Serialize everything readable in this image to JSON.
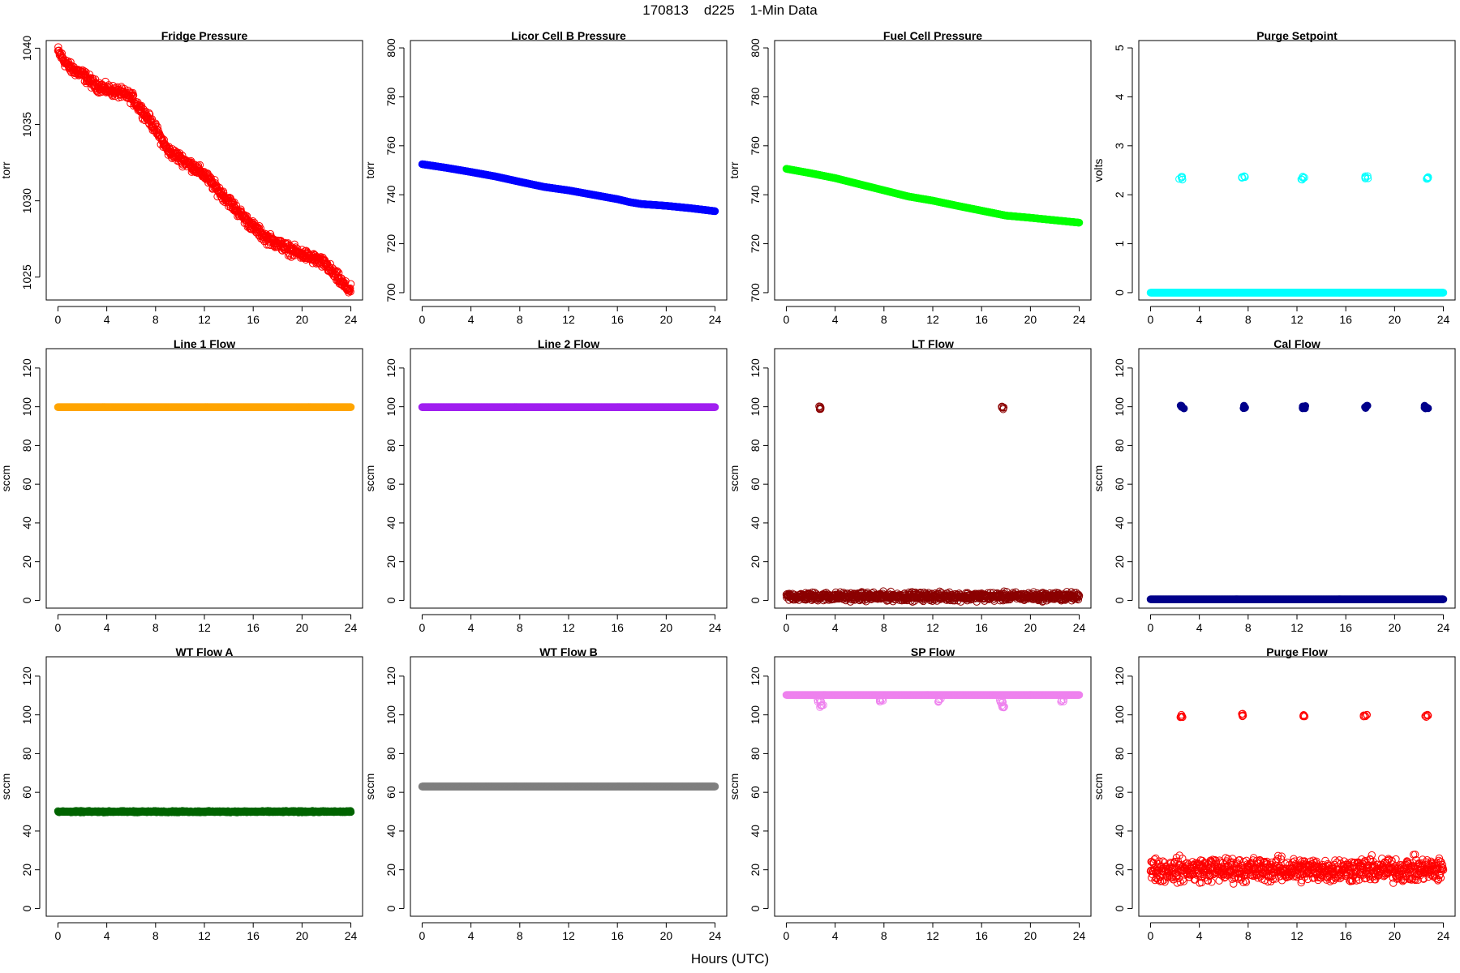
{
  "page": {
    "title": "170813    d225    1-Min Data",
    "xlabel": "Hours (UTC)"
  },
  "chart_data": [
    {
      "type": "scatter",
      "title": "Fridge Pressure",
      "ylabel": "torr",
      "color": "#ff0000",
      "xlim": [
        0,
        24
      ],
      "ylim": [
        1023.5,
        1040.5
      ],
      "xticks": [
        0,
        4,
        8,
        12,
        16,
        20,
        24
      ],
      "yticks": [
        1025,
        1030,
        1035,
        1040
      ],
      "series": [
        {
          "marker": "open-circle",
          "noise": 0.3,
          "x": [
            0,
            0.5,
            1,
            1.5,
            2,
            3,
            4,
            5,
            6,
            6.5,
            7,
            7.5,
            8,
            8.5,
            9,
            10,
            11,
            12,
            13,
            14,
            15,
            16,
            17,
            18,
            19,
            20,
            21,
            22,
            22.5,
            23,
            23.5,
            24
          ],
          "y": [
            1039.8,
            1039.2,
            1038.7,
            1038.5,
            1038.3,
            1037.6,
            1037.3,
            1037.1,
            1036.8,
            1036.3,
            1035.8,
            1035.3,
            1034.7,
            1034.0,
            1033.3,
            1032.8,
            1032.3,
            1031.7,
            1030.8,
            1030.0,
            1029.1,
            1028.3,
            1027.6,
            1027.2,
            1026.8,
            1026.5,
            1026.2,
            1025.8,
            1025.3,
            1024.9,
            1024.4,
            1024.1
          ]
        }
      ]
    },
    {
      "type": "scatter",
      "title": "Licor Cell B Pressure",
      "ylabel": "torr",
      "color": "#0000ff",
      "xlim": [
        0,
        24
      ],
      "ylim": [
        697,
        803
      ],
      "xticks": [
        0,
        4,
        8,
        12,
        16,
        20,
        24
      ],
      "yticks": [
        700,
        720,
        740,
        760,
        780,
        800
      ],
      "series": [
        {
          "marker": "filled-circle",
          "noise": 0,
          "x": [
            0,
            2,
            4,
            6,
            8,
            10,
            12,
            14,
            16,
            17,
            18,
            20,
            22,
            24
          ],
          "y": [
            752.5,
            751,
            749.3,
            747.5,
            745.3,
            743.2,
            741.8,
            740,
            738.2,
            737,
            736.2,
            735.5,
            734.5,
            733.3
          ]
        }
      ]
    },
    {
      "type": "scatter",
      "title": "Fuel Cell Pressure",
      "ylabel": "torr",
      "color": "#00ff00",
      "xlim": [
        0,
        24
      ],
      "ylim": [
        697,
        803
      ],
      "xticks": [
        0,
        4,
        8,
        12,
        16,
        20,
        24
      ],
      "yticks": [
        700,
        720,
        740,
        760,
        780,
        800
      ],
      "series": [
        {
          "marker": "filled-circle",
          "noise": 0,
          "x": [
            0,
            2,
            4,
            6,
            8,
            10,
            12,
            14,
            16,
            18,
            20,
            22,
            24
          ],
          "y": [
            750.6,
            748.8,
            746.8,
            744.3,
            741.8,
            739.3,
            737.6,
            735.5,
            733.5,
            731.5,
            730.6,
            729.6,
            728.6
          ]
        }
      ]
    },
    {
      "type": "scatter",
      "title": "Purge Setpoint",
      "ylabel": "volts",
      "color": "#00ffff",
      "xlim": [
        0,
        24
      ],
      "ylim": [
        -0.15,
        5.15
      ],
      "xticks": [
        0,
        4,
        8,
        12,
        16,
        20,
        24
      ],
      "yticks": [
        0,
        1,
        2,
        3,
        4,
        5
      ],
      "series": [
        {
          "marker": "filled-circle",
          "noise": 0,
          "x": [
            0,
            24
          ],
          "y": [
            0,
            0
          ]
        },
        {
          "marker": "open-circle",
          "clusters": [
            {
              "x": 2.5,
              "y": 2.34
            },
            {
              "x": 7.6,
              "y": 2.35
            },
            {
              "x": 12.5,
              "y": 2.34
            },
            {
              "x": 17.7,
              "y": 2.35
            },
            {
              "x": 22.6,
              "y": 2.34
            }
          ]
        }
      ]
    },
    {
      "type": "scatter",
      "title": "Line 1 Flow",
      "ylabel": "sccm",
      "color": "#ffa500",
      "xlim": [
        0,
        24
      ],
      "ylim": [
        -4,
        130
      ],
      "xticks": [
        0,
        4,
        8,
        12,
        16,
        20,
        24
      ],
      "yticks": [
        0,
        20,
        40,
        60,
        80,
        100,
        120
      ],
      "series": [
        {
          "marker": "filled-circle",
          "noise": 0,
          "x": [
            0,
            24
          ],
          "y": [
            99.8,
            99.8
          ]
        }
      ]
    },
    {
      "type": "scatter",
      "title": "Line 2 Flow",
      "ylabel": "sccm",
      "color": "#a020f0",
      "xlim": [
        0,
        24
      ],
      "ylim": [
        -4,
        130
      ],
      "xticks": [
        0,
        4,
        8,
        12,
        16,
        20,
        24
      ],
      "yticks": [
        0,
        20,
        40,
        60,
        80,
        100,
        120
      ],
      "series": [
        {
          "marker": "filled-circle",
          "noise": 0,
          "x": [
            0,
            24
          ],
          "y": [
            99.8,
            99.8
          ]
        }
      ]
    },
    {
      "type": "scatter",
      "title": "LT Flow",
      "ylabel": "sccm",
      "color": "#8b0000",
      "xlim": [
        0,
        24
      ],
      "ylim": [
        -4,
        130
      ],
      "xticks": [
        0,
        4,
        8,
        12,
        16,
        20,
        24
      ],
      "yticks": [
        0,
        20,
        40,
        60,
        80,
        100,
        120
      ],
      "series": [
        {
          "marker": "open-circle",
          "noise": 1.8,
          "x": [
            0,
            24
          ],
          "y": [
            2,
            2
          ]
        },
        {
          "marker": "open-circle",
          "clusters": [
            {
              "x": 2.8,
              "y": 99.5
            },
            {
              "x": 17.8,
              "y": 99.5
            }
          ]
        }
      ]
    },
    {
      "type": "scatter",
      "title": "Cal Flow",
      "ylabel": "sccm",
      "color": "#00008b",
      "xlim": [
        0,
        24
      ],
      "ylim": [
        -4,
        130
      ],
      "xticks": [
        0,
        4,
        8,
        12,
        16,
        20,
        24
      ],
      "yticks": [
        0,
        20,
        40,
        60,
        80,
        100,
        120
      ],
      "series": [
        {
          "marker": "filled-circle",
          "noise": 0,
          "x": [
            0,
            24
          ],
          "y": [
            0.6,
            0.6
          ]
        },
        {
          "marker": "filled-circle",
          "clusters": [
            {
              "x": 2.6,
              "y": 99.8
            },
            {
              "x": 7.7,
              "y": 99.8
            },
            {
              "x": 12.6,
              "y": 99.8
            },
            {
              "x": 17.7,
              "y": 99.8
            },
            {
              "x": 22.6,
              "y": 99.8
            }
          ]
        }
      ]
    },
    {
      "type": "scatter",
      "title": "WT Flow A",
      "ylabel": "sccm",
      "color": "#006400",
      "xlim": [
        0,
        24
      ],
      "ylim": [
        -4,
        130
      ],
      "xticks": [
        0,
        4,
        8,
        12,
        16,
        20,
        24
      ],
      "yticks": [
        0,
        20,
        40,
        60,
        80,
        100,
        120
      ],
      "series": [
        {
          "marker": "open-circle",
          "noise": 0.3,
          "x": [
            0,
            24
          ],
          "y": [
            50,
            50
          ]
        }
      ]
    },
    {
      "type": "scatter",
      "title": "WT Flow B",
      "ylabel": "sccm",
      "color": "#7f7f7f",
      "xlim": [
        0,
        24
      ],
      "ylim": [
        -4,
        130
      ],
      "xticks": [
        0,
        4,
        8,
        12,
        16,
        20,
        24
      ],
      "yticks": [
        0,
        20,
        40,
        60,
        80,
        100,
        120
      ],
      "series": [
        {
          "marker": "filled-circle",
          "noise": 0,
          "x": [
            0,
            24
          ],
          "y": [
            63,
            63
          ]
        }
      ]
    },
    {
      "type": "scatter",
      "title": "SP Flow",
      "ylabel": "sccm",
      "color": "#ee82ee",
      "xlim": [
        0,
        24
      ],
      "ylim": [
        -4,
        130
      ],
      "xticks": [
        0,
        4,
        8,
        12,
        16,
        20,
        24
      ],
      "yticks": [
        0,
        20,
        40,
        60,
        80,
        100,
        120
      ],
      "series": [
        {
          "marker": "open-circle",
          "noise": 0,
          "x": [
            0,
            24
          ],
          "y": [
            110.3,
            110.3
          ]
        },
        {
          "marker": "open-circle",
          "clusters": [
            {
              "x": 2.7,
              "y": 107
            },
            {
              "x": 2.9,
              "y": 104.5
            },
            {
              "x": 7.8,
              "y": 107.5
            },
            {
              "x": 12.6,
              "y": 107.5
            },
            {
              "x": 17.6,
              "y": 107
            },
            {
              "x": 17.8,
              "y": 104.5
            },
            {
              "x": 22.6,
              "y": 107.5
            }
          ]
        }
      ]
    },
    {
      "type": "scatter",
      "title": "Purge Flow",
      "ylabel": "sccm",
      "color": "#ff0000",
      "xlim": [
        0,
        24
      ],
      "ylim": [
        -4,
        130
      ],
      "xticks": [
        0,
        4,
        8,
        12,
        16,
        20,
        24
      ],
      "yticks": [
        0,
        20,
        40,
        60,
        80,
        100,
        120
      ],
      "series": [
        {
          "marker": "open-circle",
          "noise": 5,
          "x": [
            0,
            24
          ],
          "y": [
            20,
            20
          ]
        },
        {
          "marker": "open-circle",
          "clusters": [
            {
              "x": 2.5,
              "y": 99.5
            },
            {
              "x": 7.6,
              "y": 99.8
            },
            {
              "x": 12.5,
              "y": 99.8
            },
            {
              "x": 17.6,
              "y": 99.7
            },
            {
              "x": 22.6,
              "y": 99.5
            }
          ]
        }
      ]
    }
  ]
}
